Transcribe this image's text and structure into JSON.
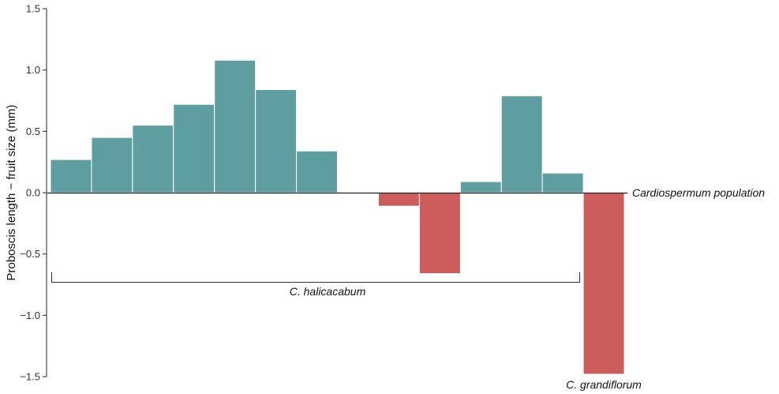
{
  "chart_data": {
    "type": "bar",
    "ylabel": "Proboscis length − fruit size (mm)",
    "ylim": [
      -1.5,
      1.5
    ],
    "yticks": [
      1.5,
      1.0,
      0.5,
      0.0,
      -0.5,
      -1.0,
      -1.5
    ],
    "ytick_labels": [
      "1.5",
      "1.0",
      "0.5",
      "0.0",
      "−0.5",
      "−1.0",
      "−1.5"
    ],
    "values": [
      0.27,
      0.45,
      0.55,
      0.72,
      1.08,
      0.84,
      0.34,
      -0.01,
      -0.11,
      -0.66,
      0.09,
      0.79,
      0.16,
      -1.48
    ],
    "positive_color": "#5f9ea0",
    "negative_color": "#cd5c5c",
    "grid": false,
    "baseline_label": "Cardiospermum population",
    "group_label": "C. halicacabum",
    "outlier_label": "C. grandiflorum"
  }
}
